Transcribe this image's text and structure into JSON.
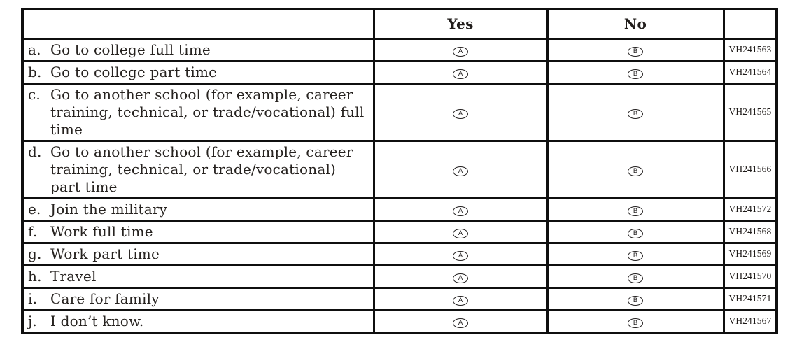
{
  "table": {
    "headers": {
      "label_blank": "",
      "yes": "Yes",
      "no": "No",
      "code_blank": ""
    },
    "bubbles": {
      "yes_letter": "A",
      "no_letter": "B"
    },
    "rows": [
      {
        "letter": "a.",
        "label": "Go to college full time",
        "code": "VH241563"
      },
      {
        "letter": "b.",
        "label": "Go to college part time",
        "code": "VH241564"
      },
      {
        "letter": "c.",
        "label": "Go to another school (for example, career training, technical, or trade/vocational) full time",
        "code": "VH241565"
      },
      {
        "letter": "d.",
        "label": "Go to another school (for example, career training, technical, or trade/vocational) part time",
        "code": "VH241566"
      },
      {
        "letter": "e.",
        "label": "Join the military",
        "code": "VH241572"
      },
      {
        "letter": "f.",
        "label": "Work full time",
        "code": "VH241568"
      },
      {
        "letter": "g.",
        "label": "Work part time",
        "code": "VH241569"
      },
      {
        "letter": "h.",
        "label": "Travel",
        "code": "VH241570"
      },
      {
        "letter": "i.",
        "label": "Care for family",
        "code": "VH241571"
      },
      {
        "letter": "j.",
        "label": "I don’t know.",
        "code": "VH241567"
      }
    ]
  }
}
